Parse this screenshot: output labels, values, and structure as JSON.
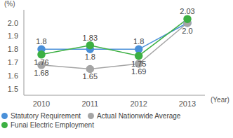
{
  "chart_data": {
    "type": "line",
    "y_label": "(%)",
    "x_label": "(Year)",
    "categories": [
      "2010",
      "2011",
      "2012",
      "2013"
    ],
    "series": [
      {
        "name": "Statutory Requirement",
        "color": "#4a90d9",
        "values": [
          1.8,
          1.8,
          1.8,
          2.0
        ],
        "value_labels": [
          "1.8",
          "1.8",
          "1.8",
          "2.0"
        ]
      },
      {
        "name": "Actual Nationwide Average",
        "color": "#a5a5a5",
        "values": [
          1.68,
          1.65,
          1.69,
          2.0
        ],
        "value_labels": [
          "1.68",
          "1.65",
          "1.69",
          null
        ]
      },
      {
        "name": "Funai Electric Employment",
        "color": "#3cb043",
        "values": [
          1.76,
          1.83,
          1.75,
          2.03
        ],
        "value_labels": [
          "1.76",
          "1.83",
          "1.75",
          "2.03"
        ]
      }
    ],
    "ylim": [
      1.45,
      2.1
    ],
    "yticks": [
      1.5,
      1.6,
      1.7,
      1.8,
      1.9,
      {
        "value": 2,
        "label": "2.0"
      }
    ],
    "grid": false,
    "data_labels": true,
    "legend": "bottom"
  }
}
